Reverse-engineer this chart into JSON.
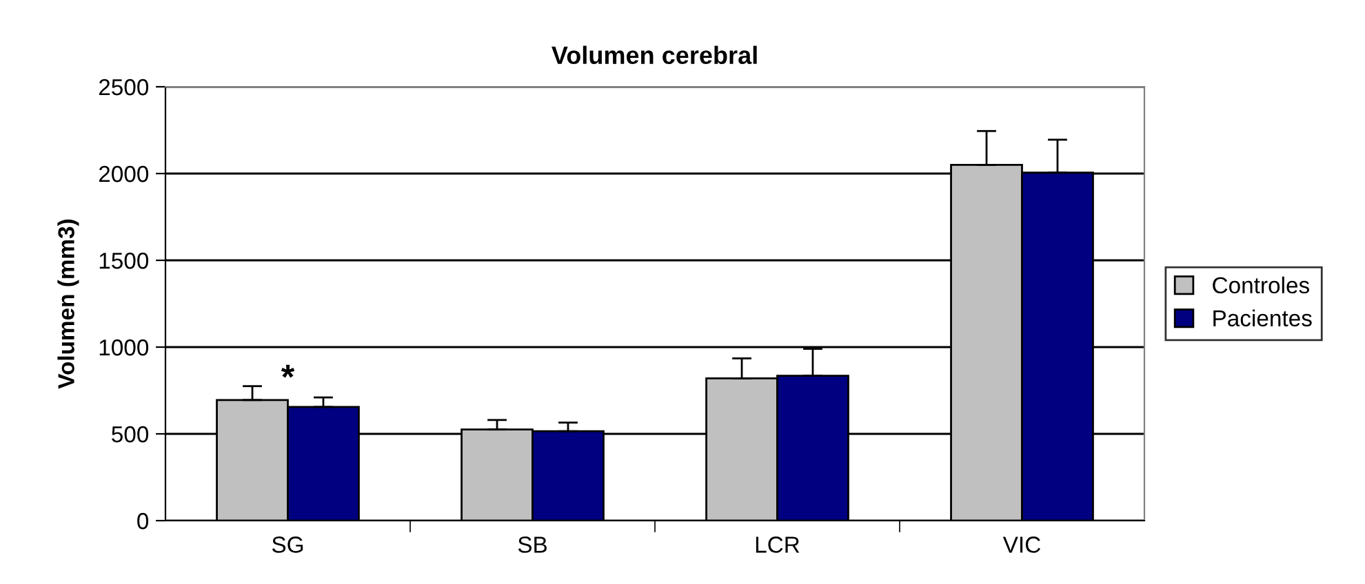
{
  "chart_data": {
    "type": "bar",
    "title": "Volumen cerebral",
    "ylabel": "Volumen (mm3)",
    "categories": [
      "SG",
      "SB",
      "LCR",
      "VIC"
    ],
    "series": [
      {
        "name": "Controles",
        "color": "#c0c0c0",
        "values": [
          695,
          525,
          820,
          2050
        ],
        "errors": [
          [
            695,
            775
          ],
          [
            525,
            580
          ],
          [
            820,
            935
          ],
          [
            2050,
            2245
          ]
        ]
      },
      {
        "name": "Pacientes",
        "color": "#000080",
        "values": [
          655,
          515,
          835,
          2005
        ],
        "errors": [
          [
            655,
            710
          ],
          [
            515,
            565
          ],
          [
            835,
            990
          ],
          [
            2005,
            2195
          ]
        ]
      }
    ],
    "annotations": [
      {
        "text": "*",
        "x": "SG",
        "y": 720
      }
    ],
    "ylim": [
      0,
      2500
    ],
    "yticks": [
      0,
      500,
      1000,
      1500,
      2000,
      2500
    ],
    "grid": "y",
    "legend": "right"
  }
}
